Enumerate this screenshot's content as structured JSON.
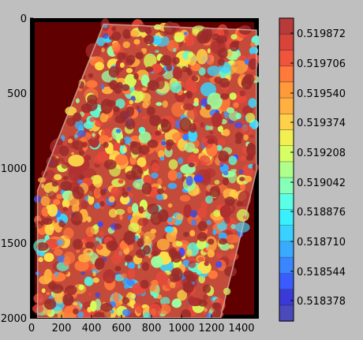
{
  "chart_data": {
    "type": "heatmap",
    "title": "",
    "xlabel": "",
    "ylabel": "",
    "xlim": [
      0,
      1500
    ],
    "ylim": [
      2000,
      0
    ],
    "x_ticks": [
      0,
      200,
      400,
      600,
      800,
      1000,
      1200,
      1400
    ],
    "y_ticks": [
      0,
      500,
      1000,
      1500,
      2000
    ],
    "colorbar": {
      "ticks": [
        "0.519872",
        "0.519706",
        "0.519540",
        "0.519374",
        "0.519208",
        "0.519042",
        "0.518876",
        "0.518710",
        "0.518544",
        "0.518378"
      ],
      "min": 0.518378,
      "max": 0.519955,
      "levels": 19,
      "colormap": "jet"
    },
    "footprint_polygon": [
      [
        480,
        40
      ],
      [
        1500,
        80
      ],
      [
        1500,
        1020
      ],
      [
        1260,
        2000
      ],
      [
        40,
        2000
      ],
      [
        40,
        1150
      ]
    ],
    "background_color": "#600000",
    "axes_facecolor": "#000000",
    "figure_facecolor": "#bfbfbf",
    "grid": false
  }
}
